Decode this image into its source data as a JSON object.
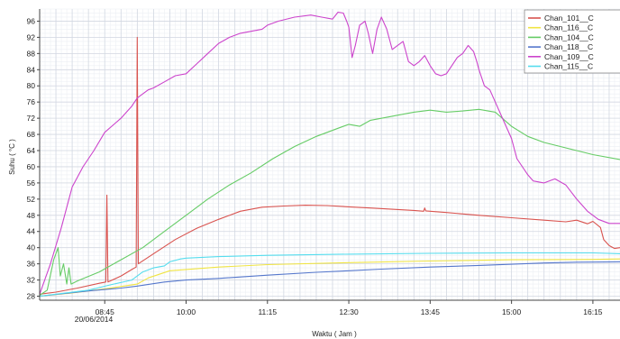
{
  "chart_data": {
    "type": "line",
    "xlabel": "Waktu ( Jam )",
    "ylabel": "Suhu ( °C )",
    "date_label": "20/06/2014",
    "x_range": [
      "07:45",
      "16:40"
    ],
    "x_ticks": [
      "08:45",
      "10:00",
      "11:15",
      "12:30",
      "13:45",
      "15:00",
      "16:15"
    ],
    "y_ticks": [
      28,
      32,
      36,
      40,
      44,
      48,
      52,
      56,
      60,
      64,
      68,
      72,
      76,
      80,
      84,
      88,
      92,
      96
    ],
    "ylim": [
      27,
      99
    ],
    "grid": true,
    "legend": "top-right",
    "series": [
      {
        "name": "Chan_101__C",
        "color": "#d9534f",
        "points": [
          [
            "07:45",
            28.5
          ],
          [
            "08:00",
            29
          ],
          [
            "08:20",
            30
          ],
          [
            "08:40",
            31.2
          ],
          [
            "08:46",
            31.5
          ],
          [
            "08:47",
            53
          ],
          [
            "08:48",
            31.5
          ],
          [
            "09:00",
            33
          ],
          [
            "09:10",
            34.6
          ],
          [
            "09:14",
            35.2
          ],
          [
            "09:15",
            92
          ],
          [
            "09:16",
            36
          ],
          [
            "09:30",
            38.5
          ],
          [
            "09:50",
            42
          ],
          [
            "10:10",
            44.8
          ],
          [
            "10:30",
            47
          ],
          [
            "10:50",
            49
          ],
          [
            "11:10",
            50
          ],
          [
            "11:30",
            50.3
          ],
          [
            "11:50",
            50.5
          ],
          [
            "12:10",
            50.4
          ],
          [
            "12:30",
            50.1
          ],
          [
            "12:50",
            49.8
          ],
          [
            "13:10",
            49.5
          ],
          [
            "13:30",
            49.2
          ],
          [
            "13:39",
            49
          ],
          [
            "13:40",
            49.8
          ],
          [
            "13:41",
            49.1
          ],
          [
            "14:00",
            48.7
          ],
          [
            "14:30",
            48
          ],
          [
            "15:00",
            47.4
          ],
          [
            "15:30",
            46.8
          ],
          [
            "15:50",
            46.4
          ],
          [
            "16:00",
            46.8
          ],
          [
            "16:10",
            45.9
          ],
          [
            "16:15",
            46.5
          ],
          [
            "16:22",
            45
          ],
          [
            "16:25",
            42
          ],
          [
            "16:30",
            40.5
          ],
          [
            "16:35",
            39.8
          ],
          [
            "16:40",
            40
          ]
        ]
      },
      {
        "name": "Chan_116__C",
        "color": "#f0e442",
        "points": [
          [
            "07:45",
            28
          ],
          [
            "08:15",
            28.8
          ],
          [
            "08:45",
            29.8
          ],
          [
            "09:15",
            31
          ],
          [
            "09:25",
            32.5
          ],
          [
            "09:45",
            34.3
          ],
          [
            "10:00",
            34.6
          ],
          [
            "10:30",
            35.2
          ],
          [
            "11:15",
            35.8
          ],
          [
            "12:30",
            36.3
          ],
          [
            "13:45",
            36.7
          ],
          [
            "15:00",
            37
          ],
          [
            "16:15",
            37.1
          ],
          [
            "16:40",
            37.2
          ]
        ]
      },
      {
        "name": "Chan_104__C",
        "color": "#66cc66",
        "points": [
          [
            "07:45",
            28.2
          ],
          [
            "07:52",
            29.5
          ],
          [
            "07:58",
            37
          ],
          [
            "08:02",
            40
          ],
          [
            "08:04",
            33
          ],
          [
            "08:07",
            36
          ],
          [
            "08:10",
            31
          ],
          [
            "08:12",
            35
          ],
          [
            "08:14",
            31
          ],
          [
            "08:20",
            31.8
          ],
          [
            "08:40",
            34
          ],
          [
            "09:00",
            37
          ],
          [
            "09:20",
            40
          ],
          [
            "09:40",
            44
          ],
          [
            "10:00",
            48
          ],
          [
            "10:20",
            52
          ],
          [
            "10:40",
            55.5
          ],
          [
            "11:00",
            58.5
          ],
          [
            "11:20",
            62
          ],
          [
            "11:40",
            65
          ],
          [
            "12:00",
            67.5
          ],
          [
            "12:20",
            69.5
          ],
          [
            "12:30",
            70.5
          ],
          [
            "12:40",
            70
          ],
          [
            "12:50",
            71.5
          ],
          [
            "13:10",
            72.5
          ],
          [
            "13:30",
            73.5
          ],
          [
            "13:45",
            74
          ],
          [
            "14:00",
            73.5
          ],
          [
            "14:15",
            73.8
          ],
          [
            "14:30",
            74.2
          ],
          [
            "14:45",
            73.5
          ],
          [
            "15:00",
            70
          ],
          [
            "15:15",
            67.5
          ],
          [
            "15:30",
            66
          ],
          [
            "15:45",
            65
          ],
          [
            "16:00",
            64
          ],
          [
            "16:15",
            63
          ],
          [
            "16:40",
            61.8
          ]
        ]
      },
      {
        "name": "Chan_118__C",
        "color": "#5577cc",
        "points": [
          [
            "07:45",
            28
          ],
          [
            "08:30",
            29.3
          ],
          [
            "09:00",
            30
          ],
          [
            "09:15",
            30.5
          ],
          [
            "09:40",
            31.5
          ],
          [
            "10:00",
            32
          ],
          [
            "10:30",
            32.4
          ],
          [
            "11:15",
            33.2
          ],
          [
            "12:00",
            33.9
          ],
          [
            "12:30",
            34.3
          ],
          [
            "13:00",
            34.7
          ],
          [
            "13:45",
            35.2
          ],
          [
            "14:30",
            35.6
          ],
          [
            "15:00",
            35.9
          ],
          [
            "15:30",
            36.2
          ],
          [
            "16:00",
            36.4
          ],
          [
            "16:40",
            36.5
          ]
        ]
      },
      {
        "name": "Chan_109__C",
        "color": "#cc44cc",
        "points": [
          [
            "07:45",
            28.5
          ],
          [
            "07:55",
            36
          ],
          [
            "08:05",
            45
          ],
          [
            "08:15",
            55
          ],
          [
            "08:25",
            60
          ],
          [
            "08:35",
            64
          ],
          [
            "08:45",
            68.5
          ],
          [
            "09:00",
            72
          ],
          [
            "09:10",
            75
          ],
          [
            "09:15",
            77
          ],
          [
            "09:25",
            79
          ],
          [
            "09:30",
            79.5
          ],
          [
            "09:40",
            81
          ],
          [
            "09:50",
            82.5
          ],
          [
            "10:00",
            83
          ],
          [
            "10:10",
            85.5
          ],
          [
            "10:20",
            88
          ],
          [
            "10:30",
            90.5
          ],
          [
            "10:40",
            92
          ],
          [
            "10:50",
            93
          ],
          [
            "11:00",
            93.5
          ],
          [
            "11:10",
            94
          ],
          [
            "11:15",
            95
          ],
          [
            "11:25",
            96
          ],
          [
            "11:40",
            97
          ],
          [
            "11:55",
            97.5
          ],
          [
            "12:05",
            97
          ],
          [
            "12:15",
            96.5
          ],
          [
            "12:20",
            98.2
          ],
          [
            "12:25",
            98
          ],
          [
            "12:28",
            96
          ],
          [
            "12:30",
            94.5
          ],
          [
            "12:33",
            87
          ],
          [
            "12:36",
            90
          ],
          [
            "12:40",
            95
          ],
          [
            "12:45",
            96
          ],
          [
            "12:48",
            93
          ],
          [
            "12:52",
            88
          ],
          [
            "12:56",
            94
          ],
          [
            "13:00",
            97
          ],
          [
            "13:05",
            94
          ],
          [
            "13:10",
            89
          ],
          [
            "13:15",
            90
          ],
          [
            "13:20",
            91
          ],
          [
            "13:25",
            86
          ],
          [
            "13:30",
            85
          ],
          [
            "13:35",
            86
          ],
          [
            "13:40",
            87.5
          ],
          [
            "13:45",
            85
          ],
          [
            "13:50",
            83
          ],
          [
            "13:55",
            82.5
          ],
          [
            "14:00",
            83
          ],
          [
            "14:05",
            85
          ],
          [
            "14:10",
            87
          ],
          [
            "14:15",
            88
          ],
          [
            "14:20",
            90
          ],
          [
            "14:25",
            88.5
          ],
          [
            "14:28",
            86
          ],
          [
            "14:30",
            84
          ],
          [
            "14:35",
            80
          ],
          [
            "14:40",
            79
          ],
          [
            "14:45",
            76
          ],
          [
            "15:00",
            67
          ],
          [
            "15:05",
            62
          ],
          [
            "15:10",
            60
          ],
          [
            "15:15",
            58
          ],
          [
            "15:20",
            56.5
          ],
          [
            "15:30",
            56
          ],
          [
            "15:40",
            57
          ],
          [
            "15:50",
            55.5
          ],
          [
            "16:00",
            52
          ],
          [
            "16:10",
            49
          ],
          [
            "16:20",
            47
          ],
          [
            "16:30",
            46
          ],
          [
            "16:40",
            46
          ]
        ]
      },
      {
        "name": "Chan_115__C",
        "color": "#55ddee",
        "points": [
          [
            "07:45",
            28
          ],
          [
            "08:30",
            29.5
          ],
          [
            "08:50",
            30.8
          ],
          [
            "09:10",
            32
          ],
          [
            "09:20",
            34
          ],
          [
            "09:30",
            35
          ],
          [
            "09:40",
            35.5
          ],
          [
            "09:45",
            36.5
          ],
          [
            "09:55",
            37.2
          ],
          [
            "10:00",
            37.4
          ],
          [
            "10:30",
            37.8
          ],
          [
            "11:15",
            38.1
          ],
          [
            "12:30",
            38.4
          ],
          [
            "13:45",
            38.6
          ],
          [
            "15:00",
            38.7
          ],
          [
            "16:15",
            38.7
          ],
          [
            "16:40",
            38.5
          ]
        ]
      }
    ]
  }
}
